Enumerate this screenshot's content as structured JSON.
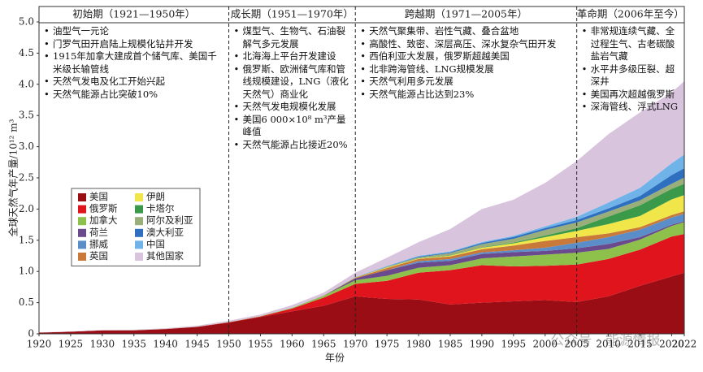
{
  "chart_data": {
    "type": "stacked-area",
    "xlabel": "年份",
    "ylabel": "全球天然气年产量/10¹² m³",
    "watermark": "公众号 · 能源情报",
    "x": [
      1920,
      1925,
      1930,
      1935,
      1940,
      1945,
      1950,
      1955,
      1960,
      1965,
      1970,
      1975,
      1980,
      1985,
      1990,
      1995,
      2000,
      2005,
      2010,
      2015,
      2020,
      2022
    ],
    "series": [
      {
        "name": "美国",
        "color": "#9b0d14",
        "values": [
          0.02,
          0.034,
          0.055,
          0.055,
          0.075,
          0.11,
          0.18,
          0.27,
          0.36,
          0.45,
          0.6,
          0.56,
          0.55,
          0.47,
          0.5,
          0.52,
          0.54,
          0.51,
          0.6,
          0.77,
          0.92,
          0.98
        ]
      },
      {
        "name": "俄罗斯",
        "color": "#e0141c",
        "values": [
          0,
          0,
          0,
          0.001,
          0.003,
          0.003,
          0.006,
          0.009,
          0.045,
          0.13,
          0.2,
          0.29,
          0.43,
          0.55,
          0.6,
          0.56,
          0.55,
          0.6,
          0.6,
          0.58,
          0.64,
          0.62
        ]
      },
      {
        "name": "加拿大",
        "color": "#8dc14b",
        "values": [
          0,
          0,
          0.001,
          0.001,
          0.001,
          0.001,
          0.002,
          0.004,
          0.012,
          0.03,
          0.06,
          0.08,
          0.08,
          0.08,
          0.11,
          0.16,
          0.18,
          0.19,
          0.16,
          0.16,
          0.17,
          0.19
        ]
      },
      {
        "name": "荷兰",
        "color": "#6a4a8c",
        "values": [
          0,
          0,
          0,
          0,
          0,
          0,
          0,
          0,
          0,
          0.003,
          0.03,
          0.09,
          0.08,
          0.07,
          0.07,
          0.07,
          0.06,
          0.07,
          0.08,
          0.04,
          0.02,
          0.015
        ]
      },
      {
        "name": "挪威",
        "color": "#5b8ec9",
        "values": [
          0,
          0,
          0,
          0,
          0,
          0,
          0,
          0,
          0,
          0,
          0,
          0,
          0.025,
          0.028,
          0.026,
          0.03,
          0.05,
          0.09,
          0.11,
          0.12,
          0.115,
          0.12
        ]
      },
      {
        "name": "英国",
        "color": "#c97a3a",
        "values": [
          0,
          0,
          0,
          0,
          0,
          0,
          0,
          0,
          0,
          0.001,
          0.01,
          0.035,
          0.037,
          0.043,
          0.05,
          0.075,
          0.11,
          0.09,
          0.06,
          0.04,
          0.04,
          0.04
        ]
      },
      {
        "name": "伊朗",
        "color": "#f0e64a",
        "values": [
          0,
          0,
          0,
          0,
          0,
          0,
          0,
          0,
          0,
          0.001,
          0.004,
          0.01,
          0.007,
          0.013,
          0.025,
          0.035,
          0.06,
          0.1,
          0.15,
          0.18,
          0.25,
          0.26
        ]
      },
      {
        "name": "卡塔尔",
        "color": "#3a9a4a",
        "values": [
          0,
          0,
          0,
          0,
          0,
          0,
          0,
          0,
          0,
          0,
          0.001,
          0.002,
          0.005,
          0.005,
          0.006,
          0.013,
          0.025,
          0.045,
          0.12,
          0.17,
          0.17,
          0.18
        ]
      },
      {
        "name": "阿尔及利亚",
        "color": "#9aae7a",
        "values": [
          0,
          0,
          0,
          0,
          0,
          0,
          0,
          0,
          0,
          0,
          0.002,
          0.007,
          0.014,
          0.035,
          0.05,
          0.06,
          0.09,
          0.09,
          0.08,
          0.08,
          0.08,
          0.1
        ]
      },
      {
        "name": "澳大利亚",
        "color": "#2f6fc0",
        "values": [
          0,
          0,
          0,
          0,
          0,
          0,
          0,
          0,
          0,
          0,
          0.002,
          0.005,
          0.01,
          0.013,
          0.02,
          0.03,
          0.03,
          0.04,
          0.05,
          0.07,
          0.14,
          0.15
        ]
      },
      {
        "name": "中国",
        "color": "#6fb3e8",
        "values": [
          0,
          0,
          0,
          0,
          0,
          0,
          0,
          0,
          0.001,
          0.001,
          0.003,
          0.009,
          0.014,
          0.013,
          0.015,
          0.018,
          0.027,
          0.05,
          0.095,
          0.13,
          0.19,
          0.22
        ]
      },
      {
        "name": "其他国家",
        "color": "#d9c4de",
        "values": [
          0.002,
          0.004,
          0.006,
          0.009,
          0.011,
          0.016,
          0.022,
          0.027,
          0.042,
          0.044,
          0.068,
          0.132,
          0.218,
          0.36,
          0.528,
          0.579,
          0.698,
          0.895,
          1.095,
          1.21,
          1.135,
          1.175
        ]
      }
    ],
    "xlim": [
      1920,
      2022
    ],
    "ylim": [
      0,
      5
    ],
    "xticks": [
      1920,
      1925,
      1930,
      1935,
      1940,
      1945,
      1950,
      1955,
      1960,
      1965,
      1970,
      1975,
      1980,
      1985,
      1990,
      1995,
      2000,
      2005,
      2010,
      2015,
      2020,
      2022
    ],
    "yticks": [
      0,
      0.5,
      {
        "value": 1,
        "label": "1.0"
      },
      1.5,
      {
        "value": 2,
        "label": "2.0"
      },
      2.5,
      {
        "value": 3,
        "label": "3.0"
      },
      3.5,
      {
        "value": 4,
        "label": "4.0"
      },
      4.5,
      {
        "value": 5,
        "label": "5.0"
      }
    ],
    "dividers": [
      1950,
      1970,
      2005
    ],
    "periods": [
      {
        "label": "初始期（1921—1950年）",
        "notes": [
          "油型气一元论",
          "门罗气田开启陆上规模化钻井开发",
          "1915年加拿大建成首个储气库、美国千米级长输管线",
          "天然气发电及化工开始兴起",
          "天然气能源占比突破10%"
        ]
      },
      {
        "label": "成长期（1951—1970年）",
        "notes": [
          "煤型气、生物气、石油裂解气多元发展",
          "北海海上平台开发建设",
          "俄罗斯、欧洲储气库和管线规模建设，LNG（液化天然气）商业化",
          "天然气发电规模化发展",
          "美国6 000×10⁸ m³产量峰值",
          "天然气能源占比接近20%"
        ]
      },
      {
        "label": "跨越期（1971—2005年）",
        "notes": [
          "天然气聚集带、岩性气藏、叠合盆地",
          "高酸性、致密、深层高压、深水复杂气田开发",
          "西伯利亚大发展，俄罗斯超越美国",
          "北非跨海管线、LNG规模发展",
          "天然气利用多元发展",
          "天然气能源占比达到23%"
        ]
      },
      {
        "label": "革命期（2006年至今）",
        "notes": [
          "非常规连续气藏、全过程生气、古老碳酸盐岩气藏",
          "水平井多级压裂、超深井",
          "美国再次超越俄罗斯",
          "深海管线、浮式LNG"
        ]
      }
    ]
  }
}
